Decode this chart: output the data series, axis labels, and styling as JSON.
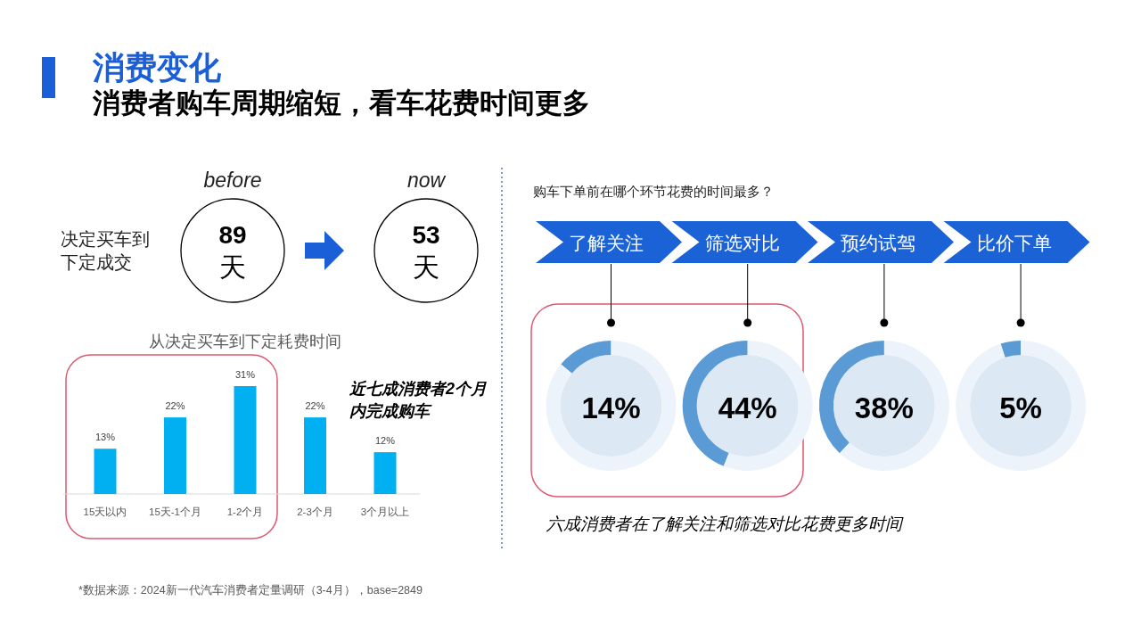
{
  "chart_data": [
    {
      "type": "other",
      "title": "消费变化",
      "subtitle": "消费者购车周期缩短，看车花费时间更多",
      "ylabel": "决定买车到下定成交",
      "categories": [
        "before",
        "now"
      ],
      "values": [
        89,
        53
      ],
      "value_labels": [
        "89\n天",
        "53\n天"
      ],
      "annotations": [
        "*数据来源：2024新一代汽车消费者定量调研（3-4月），base=2849"
      ]
    },
    {
      "type": "bar",
      "title": "从决定买车到下定耗费时间",
      "categories": [
        "15天以内",
        "15天-1个月",
        "1-2个月",
        "2-3个月",
        "3个月以上"
      ],
      "values": [
        13,
        22,
        31,
        22,
        12
      ],
      "value_labels": [
        "13%",
        "22%",
        "31%",
        "22%",
        "12%"
      ],
      "color": "#00b0f0",
      "tick_labels": "x",
      "annotations": [
        "近七成消费者2个月内完成购车"
      ]
    },
    {
      "type": "other",
      "title": "购车下单前在哪个环节花费的时间最多？",
      "annotations": [
        "六成消费者在了解关注和筛选对比花费更多时间"
      ]
    },
    {
      "type": "donut",
      "title": "了解关注",
      "categories": [
        null,
        null
      ],
      "values": [
        14,
        86
      ],
      "colors": [
        "#5b9bd5",
        "#edf3fa"
      ],
      "annotations": [
        "14%"
      ]
    },
    {
      "type": "donut",
      "title": "筛选对比",
      "categories": [
        null,
        null
      ],
      "values": [
        44,
        56
      ],
      "colors": [
        "#5b9bd5",
        "#edf3fa"
      ],
      "annotations": [
        "44%"
      ]
    },
    {
      "type": "donut",
      "title": "预约试驾",
      "categories": [
        null,
        null
      ],
      "values": [
        38,
        62
      ],
      "colors": [
        "#5b9bd5",
        "#edf3fa"
      ],
      "annotations": [
        "38%"
      ]
    },
    {
      "type": "donut",
      "title": "比价下单",
      "categories": [
        null,
        null
      ],
      "values": [
        5,
        95
      ],
      "colors": [
        "#5b9bd5",
        "#edf3fa"
      ],
      "annotations": [
        "5%"
      ]
    }
  ]
}
